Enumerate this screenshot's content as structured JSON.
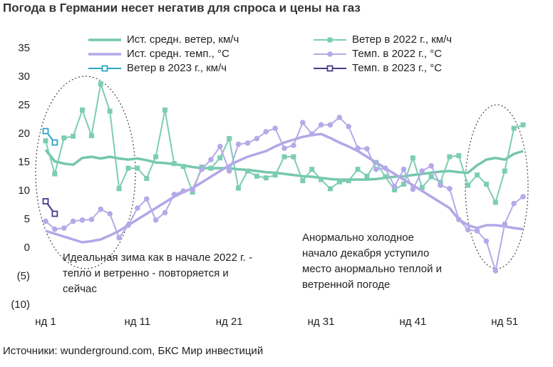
{
  "chart_data": {
    "type": "line",
    "title": "Погода в Германии несет негатив для спроса и цены на газ",
    "source": "Источники: wunderground.com, БКС Мир инвестиций",
    "annotations": [
      {
        "lines": [
          "Идеальная зима как в начале 2022 г. -",
          "тепло и ветренно - повторяется и",
          "сейчас"
        ]
      },
      {
        "lines": [
          "Анормально холодное",
          "начало декабря уступило",
          "место анормально теплой и",
          "ветренной погоде"
        ]
      }
    ],
    "x": [
      1,
      2,
      3,
      4,
      5,
      6,
      7,
      8,
      9,
      10,
      11,
      12,
      13,
      14,
      15,
      16,
      17,
      18,
      19,
      20,
      21,
      22,
      23,
      24,
      25,
      26,
      27,
      28,
      29,
      30,
      31,
      32,
      33,
      34,
      35,
      36,
      37,
      38,
      39,
      40,
      41,
      42,
      43,
      44,
      45,
      46,
      47,
      48,
      49,
      50,
      51,
      52,
      53
    ],
    "xlim": [
      1,
      53
    ],
    "xticks": [
      {
        "value": 1,
        "label": "нд 1"
      },
      {
        "value": 11,
        "label": "нд 11"
      },
      {
        "value": 21,
        "label": "нд 21"
      },
      {
        "value": 31,
        "label": "нд 31"
      },
      {
        "value": 41,
        "label": "нд 41"
      },
      {
        "value": 51,
        "label": "нд 51"
      }
    ],
    "ylim": [
      -10,
      35
    ],
    "yticks": [
      {
        "value": -10,
        "label": "(10)"
      },
      {
        "value": -5,
        "label": "(5)"
      },
      0,
      5,
      10,
      15,
      20,
      25,
      30,
      35
    ],
    "grid": false,
    "series": [
      {
        "name": "Ист. средн. ветер, км/ч",
        "color": "#74c7ae",
        "marker": "none",
        "width": 3.5,
        "values": [
          17.2,
          15.2,
          14.8,
          14.6,
          15.8,
          16,
          15.7,
          16,
          15.7,
          15.5,
          15.7,
          15.4,
          15,
          14.9,
          14.7,
          14.5,
          14.2,
          14,
          14,
          14,
          14,
          13.8,
          13.7,
          13.5,
          13.3,
          13.2,
          13,
          12.8,
          12.6,
          12.5,
          12.3,
          12.1,
          12,
          12,
          12,
          12,
          12.1,
          12.3,
          12.5,
          12.6,
          12.8,
          13,
          13.2,
          13.4,
          13.5,
          13.3,
          13.2,
          14.5,
          15.5,
          15.8,
          15.5,
          16.5,
          17
        ]
      },
      {
        "name": "Ветер в 2022 г., км/ч",
        "color": "#7ccdb3",
        "marker": "square",
        "width": 2,
        "values": [
          18.8,
          13,
          19.3,
          19.6,
          24.2,
          19.7,
          28.8,
          24,
          10.4,
          14,
          14,
          12.2,
          16,
          24.2,
          14.8,
          14.3,
          9.8,
          14.2,
          14,
          15.8,
          19.2,
          10.5,
          13.5,
          12.6,
          12.3,
          12.8,
          16,
          16,
          11.8,
          13.8,
          12,
          10.4,
          11.6,
          11.8,
          13.8,
          12.6,
          15,
          12.5,
          10.2,
          11.2,
          15.8,
          10.6,
          12.5,
          11.5,
          16,
          16.2,
          11,
          12.8,
          11.2,
          8,
          13.5,
          21,
          21.6
        ]
      },
      {
        "name": "Ист. средн. темп., °C",
        "color": "#b2a7e7",
        "marker": "none",
        "width": 3.5,
        "values": [
          3,
          2.5,
          2,
          1.5,
          1,
          1.2,
          1.5,
          2.2,
          3,
          4,
          5,
          6,
          7,
          8,
          9,
          9.8,
          10.5,
          11.5,
          12.5,
          13.5,
          14.5,
          15.3,
          16,
          16.5,
          17,
          17.8,
          18.5,
          19,
          19.5,
          19.8,
          20,
          19.3,
          18.5,
          17.8,
          17,
          16,
          15,
          14,
          13,
          12,
          11,
          10,
          9,
          8,
          7,
          5,
          4,
          3.5,
          4,
          4,
          3.8,
          3.5,
          3.3
        ]
      },
      {
        "name": "Темп. в 2022 г., °C",
        "color": "#b4aae8",
        "marker": "circle",
        "width": 2,
        "values": [
          4.7,
          3.3,
          3.5,
          4.7,
          4.9,
          5,
          6.8,
          6,
          1.8,
          4,
          7,
          8.6,
          4.9,
          6.2,
          9.4,
          10,
          10.3,
          13.8,
          15.5,
          17.8,
          13.5,
          18.2,
          18.4,
          19.2,
          20.4,
          21,
          17.5,
          18,
          22,
          20,
          21.6,
          21.6,
          22.9,
          21.3,
          17.5,
          17.4,
          13.8,
          14,
          10.8,
          13.8,
          10.3,
          13.5,
          14.4,
          11,
          10.4,
          5,
          3.2,
          3,
          1.2,
          -4,
          4.2,
          7.8,
          9
        ]
      },
      {
        "name": "Ветер в 2023 г., км/ч",
        "color": "#2aa6c6",
        "marker": "open-square",
        "width": 2,
        "x": [
          1,
          2
        ],
        "values": [
          20.5,
          18.5
        ]
      },
      {
        "name": "Темп. в 2023 г., °C",
        "color": "#4a3a8a",
        "marker": "open-square",
        "width": 2,
        "x": [
          1,
          2
        ],
        "values": [
          8.2,
          6
        ]
      }
    ]
  }
}
